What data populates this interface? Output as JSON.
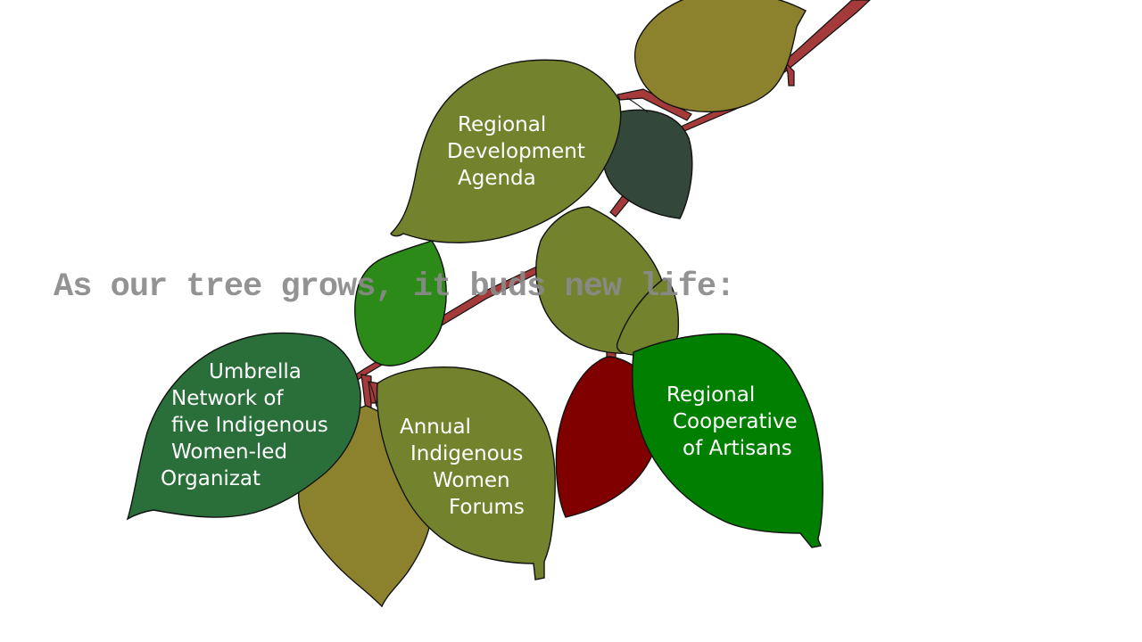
{
  "headline": "As our tree grows, it buds new life:",
  "leaves": {
    "regional_development": [
      "Regional",
      "Development",
      "Agenda"
    ],
    "umbrella_network": [
      "Umbrella",
      "Network of",
      "five Indigenous",
      "Women-led",
      "Organizat"
    ],
    "annual_forums": [
      "Annual",
      "Indigenous",
      "Women",
      "Forums"
    ],
    "cooperative_artisans": [
      "Regional",
      "Cooperative",
      "of Artisans"
    ]
  },
  "colors": {
    "branch": "#a53a3a",
    "olive_green": "#73822d",
    "olive_yellow": "#8c822d",
    "dark_slate": "#33473a",
    "forest_green": "#2a6f39",
    "bright_green": "#007f00",
    "leaf_green": "#2b8a18",
    "maroon": "#800000",
    "headline_gray": "#8a8a8a"
  }
}
